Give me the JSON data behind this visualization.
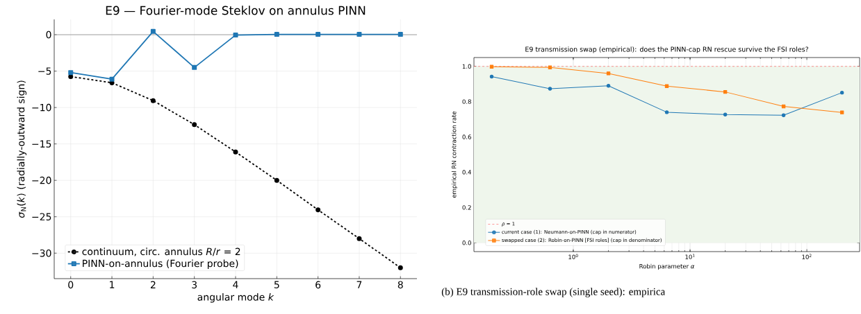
{
  "chart_data": [
    {
      "type": "line",
      "title": "E9 — Fourier-mode Steklov on annulus PINN",
      "xlabel": "angular mode *k*",
      "ylabel": "*σ*$_{N}$(*k*)  (radially-outward sign)",
      "x": [
        0,
        1,
        2,
        3,
        4,
        5,
        6,
        7,
        8
      ],
      "series": [
        {
          "name": "continuum, circ. annulus *R*/*r* = 2",
          "color": "#000000",
          "marker": "circle",
          "line_style": "dashed",
          "values": [
            -5.75,
            -6.6,
            -9.05,
            -12.35,
            -16.1,
            -20.0,
            -24.05,
            -28.0,
            -32.0
          ]
        },
        {
          "name": "PINN-on-annulus (Fourier probe)",
          "color": "#1f77b4",
          "marker": "square",
          "line_style": "solid",
          "values": [
            -5.2,
            -6.1,
            0.45,
            -4.5,
            -0.05,
            0.05,
            0.05,
            0.05,
            0.05
          ]
        }
      ],
      "xlim": [
        -0.4,
        8.4
      ],
      "ylim": [
        -33.5,
        2.1
      ],
      "xticks": [
        0,
        1,
        2,
        3,
        4,
        5,
        6,
        7,
        8
      ],
      "yticks": [
        {
          "value": -30,
          "label": "−30"
        },
        {
          "value": -25,
          "label": "−25"
        },
        {
          "value": -20,
          "label": "−20"
        },
        {
          "value": -15,
          "label": "−15"
        },
        {
          "value": -10,
          "label": "−10"
        },
        {
          "value": -5,
          "label": "−5"
        },
        0
      ],
      "ref_lines": [
        {
          "axis": "y",
          "value": 0,
          "color": "#999999",
          "line_style": "solid"
        }
      ],
      "grid": true,
      "legend": "bottom left"
    },
    {
      "type": "line",
      "title": "E9 transmission swap (empirical): does the PINN-cap RN rescue survive the FSI roles?",
      "xlabel": "Robin parameter *α*",
      "ylabel": "empirical RN contraction rate",
      "x": [
        0.2,
        0.632,
        2,
        6.32,
        20,
        63.2,
        200
      ],
      "series": [
        {
          "name": "current case (1): Neumann-on-PINN (cap in numerator)",
          "color": "#1f77b4",
          "marker": "circle",
          "line_style": "solid",
          "values": [
            0.942,
            0.873,
            0.89,
            0.74,
            0.727,
            0.723,
            0.851
          ]
        },
        {
          "name": "swapped case (2): Robin-on-PINN [FSI roles] (cap in denominator)",
          "color": "#ff7f0e",
          "marker": "square",
          "line_style": "solid",
          "values": [
            0.998,
            0.994,
            0.96,
            0.888,
            0.855,
            0.773,
            0.739
          ]
        }
      ],
      "log": "x",
      "xlim": [
        0.141,
        283
      ],
      "ylim": [
        -0.05,
        1.05
      ],
      "xticks": [
        {
          "value": 1,
          "label": "10$^{0}$"
        },
        {
          "value": 10,
          "label": "10$^{1}$"
        },
        {
          "value": 100,
          "label": "10$^{2}$"
        }
      ],
      "yticks": [
        {
          "value": 0,
          "label": "0.0"
        },
        {
          "value": 0.2,
          "label": "0.2"
        },
        {
          "value": 0.4,
          "label": "0.4"
        },
        {
          "value": 0.6,
          "label": "0.6"
        },
        {
          "value": 0.8,
          "label": "0.8"
        },
        {
          "value": 1,
          "label": "1.0"
        }
      ],
      "ref_lines": [
        {
          "axis": "y",
          "value": 1,
          "label": "*ρ* = 1",
          "color": "#ff3333",
          "line_style": "dashed"
        }
      ],
      "bands": [
        {
          "axis": "y",
          "from": 0,
          "to": 1,
          "color": "#eff6ec"
        }
      ],
      "annotations": [
        "(b) E9 transmission-role swap (single seed): empirica"
      ],
      "grid": true,
      "legend": "bottom left"
    }
  ]
}
